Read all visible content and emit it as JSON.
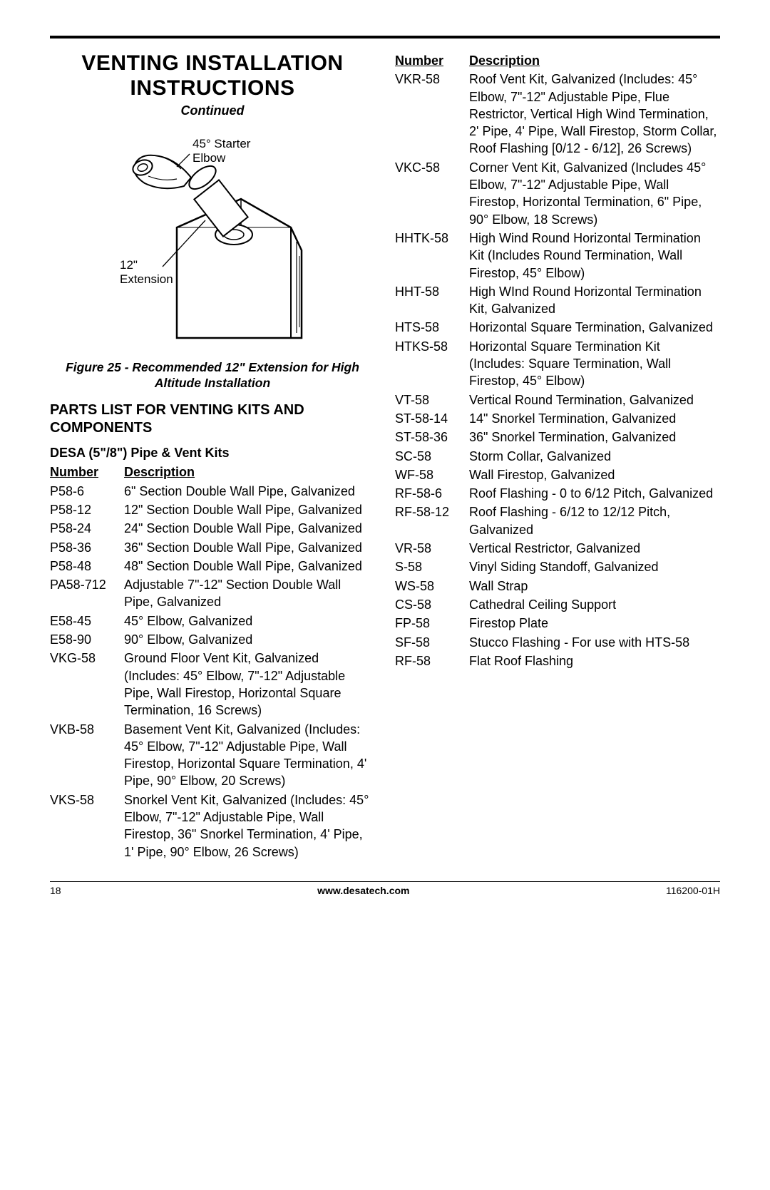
{
  "title_line1": "VENTING INSTALLATION",
  "title_line2": "INSTRUCTIONS",
  "continued": "Continued",
  "fig_label_elbow": "45° Starter Elbow",
  "fig_label_ext": "12\" Extension",
  "fig_caption": "Figure 25 - Recommended 12\" Extension for High Altitude Installation",
  "section_title": "PARTS LIST FOR VENTING KITS AND COMPONENTS",
  "kits_title": "DESA (5\"/8\") Pipe & Vent Kits",
  "col_number": "Number",
  "col_description": "Description",
  "left_rows": [
    {
      "n": "P58-6",
      "d": "6\" Section Double Wall Pipe, Galvanized"
    },
    {
      "n": "P58-12",
      "d": "12\" Section Double Wall Pipe, Galvanized"
    },
    {
      "n": "P58-24",
      "d": "24\" Section Double Wall Pipe, Galvanized"
    },
    {
      "n": "P58-36",
      "d": "36\" Section Double Wall Pipe, Galvanized"
    },
    {
      "n": "P58-48",
      "d": "48\" Section Double Wall Pipe, Galvanized"
    },
    {
      "n": "PA58-712",
      "d": "Adjustable 7\"-12\" Section Double Wall Pipe, Galvanized"
    },
    {
      "n": "E58-45",
      "d": "45° Elbow, Galvanized"
    },
    {
      "n": "E58-90",
      "d": "90° Elbow, Galvanized"
    },
    {
      "n": "VKG-58",
      "d": "Ground Floor Vent Kit, Galvanized (Includes: 45° Elbow, 7\"-12\" Adjustable Pipe, Wall Firestop, Horizontal Square Termination, 16 Screws)"
    },
    {
      "n": "VKB-58",
      "d": "Basement Vent Kit, Galvanized (Includes: 45° Elbow, 7\"-12\" Adjustable Pipe, Wall Firestop, Horizontal Square Termination, 4' Pipe, 90° Elbow, 20 Screws)"
    },
    {
      "n": "VKS-58",
      "d": "Snorkel Vent Kit, Galvanized (Includes: 45° Elbow, 7\"-12\" Adjustable Pipe, Wall Firestop, 36\" Snorkel Termination, 4' Pipe, 1' Pipe, 90° Elbow, 26 Screws)"
    }
  ],
  "right_rows": [
    {
      "n": "VKR-58",
      "d": "Roof Vent Kit, Galvanized (Includes: 45° Elbow, 7\"-12\" Adjustable Pipe, Flue Restrictor, Vertical High Wind Termination, 2' Pipe, 4' Pipe, Wall Firestop, Storm Collar, Roof Flashing [0/12 - 6/12], 26 Screws)"
    },
    {
      "n": "VKC-58",
      "d": "Corner Vent Kit, Galvanized (Includes 45° Elbow, 7\"-12\" Adjustable Pipe, Wall Firestop, Horizontal Termination, 6\" Pipe, 90° Elbow, 18 Screws)"
    },
    {
      "n": "HHTK-58",
      "d": "High Wind Round Horizontal Termination Kit (Includes Round Termination, Wall Firestop, 45° Elbow)"
    },
    {
      "n": "HHT-58",
      "d": "High WInd Round Horizontal Termination Kit, Galvanized"
    },
    {
      "n": "HTS-58",
      "d": "Horizontal Square Termination, Galvanized"
    },
    {
      "n": "HTKS-58",
      "d": "Horizontal Square Termination Kit (Includes: Square Termination, Wall Firestop, 45° Elbow)"
    },
    {
      "n": "VT-58",
      "d": "Vertical Round Termination, Galvanized"
    },
    {
      "n": "ST-58-14",
      "d": "14\" Snorkel Termination, Galvanized"
    },
    {
      "n": "ST-58-36",
      "d": "36\" Snorkel Termination, Galvanized"
    },
    {
      "n": "SC-58",
      "d": "Storm Collar, Galvanized"
    },
    {
      "n": "WF-58",
      "d": "Wall Firestop, Galvanized"
    },
    {
      "n": "RF-58-6",
      "d": "Roof Flashing - 0 to 6/12 Pitch, Galvanized"
    },
    {
      "n": "RF-58-12",
      "d": "Roof Flashing - 6/12 to 12/12 Pitch, Galvanized"
    },
    {
      "n": "VR-58",
      "d": "Vertical Restrictor, Galvanized"
    },
    {
      "n": "S-58",
      "d": "Vinyl Siding Standoff, Galvanized"
    },
    {
      "n": "WS-58",
      "d": "Wall Strap"
    },
    {
      "n": "CS-58",
      "d": "Cathedral Ceiling Support"
    },
    {
      "n": "FP-58",
      "d": "Firestop Plate"
    },
    {
      "n": "SF-58",
      "d": "Stucco Flashing - For use with HTS-58"
    },
    {
      "n": "RF-58",
      "d": "Flat Roof Flashing"
    }
  ],
  "footer": {
    "page": "18",
    "url": "www.desatech.com",
    "doc": "116200-01H"
  }
}
